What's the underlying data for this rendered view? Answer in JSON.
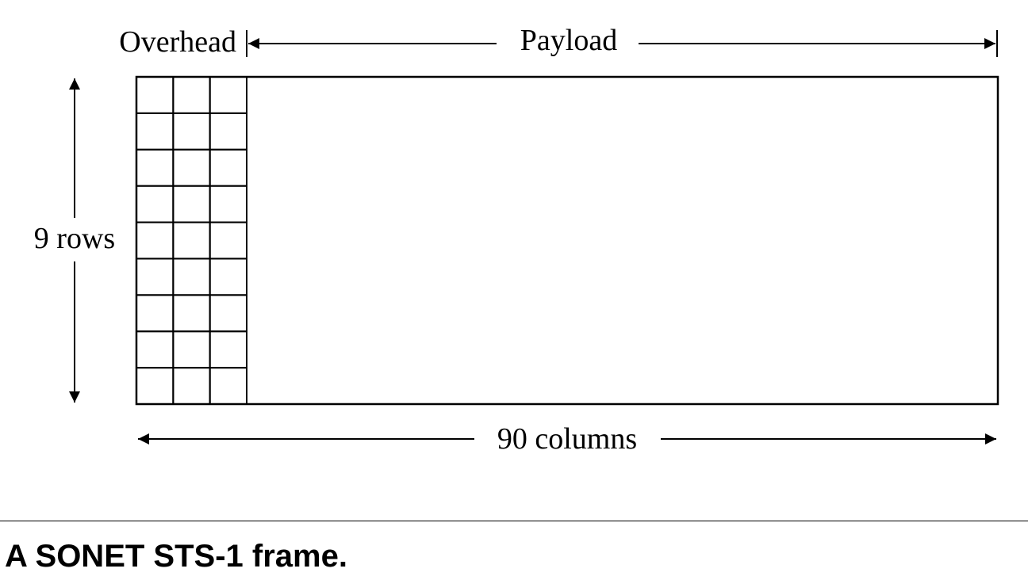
{
  "diagram": {
    "overhead_label": "Overhead",
    "payload_label": "Payload",
    "rows_label": "9 rows",
    "columns_label": "90 columns",
    "overhead_grid": {
      "rows": 9,
      "cols": 3
    },
    "stroke_color": "#000000"
  },
  "caption": "A SONET STS-1 frame."
}
